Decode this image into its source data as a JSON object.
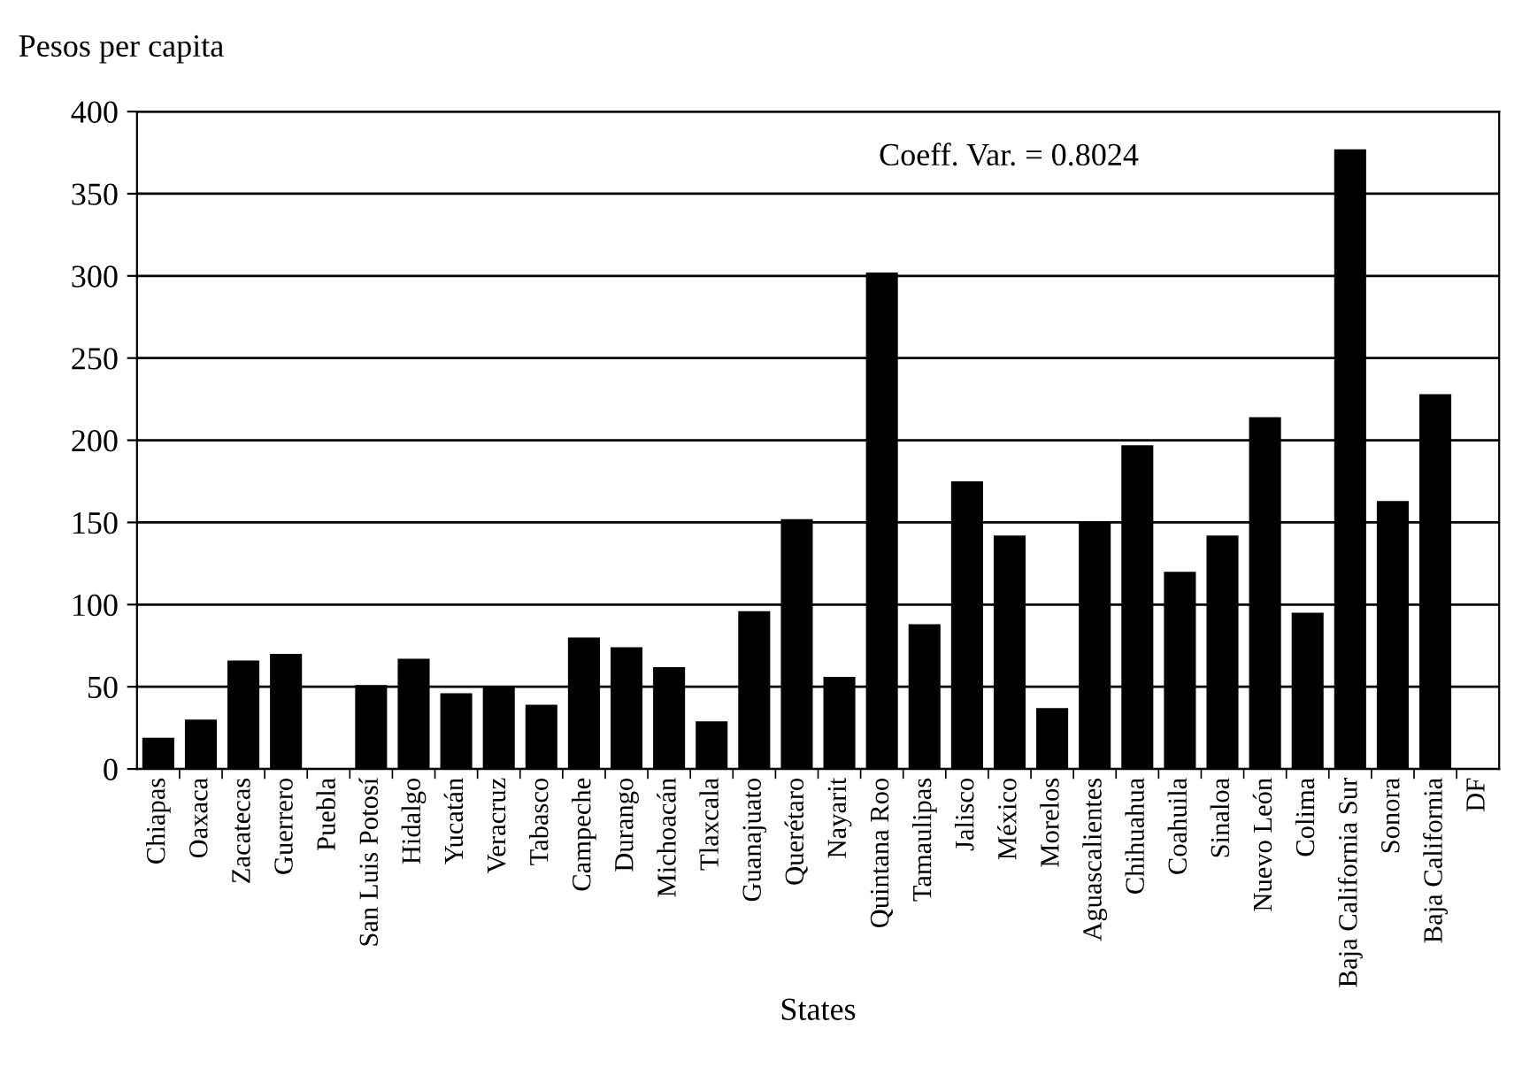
{
  "chart_data": {
    "type": "bar",
    "ylabel": "Pesos per capita",
    "xlabel": "States",
    "categories": [
      "Chiapas",
      "Oaxaca",
      "Zacatecas",
      "Guerrero",
      "Puebla",
      "San Luis Potosí",
      "Hidalgo",
      "Yucatán",
      "Veracruz",
      "Tabasco",
      "Campeche",
      "Durango",
      "Michoacán",
      "Tlaxcala",
      "Guanajuato",
      "Querétaro",
      "Nayarit",
      "Quintana Roo",
      "Tamaulipas",
      "Jalisco",
      "México",
      "Morelos",
      "Aguascalientes",
      "Chihuahua",
      "Coahuila",
      "Sinaloa",
      "Nuevo León",
      "Colima",
      "Baja California Sur",
      "Sonora",
      "Baja California",
      "DF"
    ],
    "values": [
      19,
      30,
      66,
      70,
      null,
      51,
      67,
      46,
      50,
      39,
      80,
      74,
      62,
      29,
      96,
      152,
      56,
      302,
      88,
      175,
      142,
      37,
      150,
      197,
      120,
      142,
      214,
      95,
      377,
      163,
      228,
      null
    ],
    "color": "#000000",
    "ylim": [
      0,
      400
    ],
    "yticks": [
      0,
      50,
      100,
      150,
      200,
      250,
      300,
      350,
      400
    ],
    "grid": "y",
    "annotations": [
      "Coeff. Var. = 0.8024"
    ]
  }
}
